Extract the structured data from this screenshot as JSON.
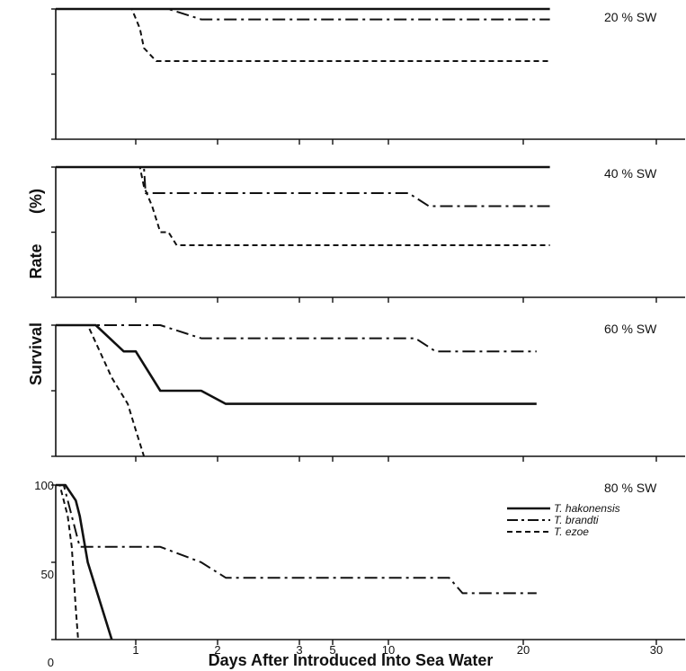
{
  "chart_data": {
    "type": "line",
    "xlabel": "Days After Introduced Into Sea Water",
    "ylabel_words": [
      "Survival",
      "Rate",
      "(%)"
    ],
    "x_ticks": [
      {
        "label": "1",
        "value": 1
      },
      {
        "label": "2",
        "value": 2
      },
      {
        "label": "3",
        "value": 3
      },
      {
        "label": "5",
        "value": 5
      },
      {
        "label": "10",
        "value": 10
      },
      {
        "label": "20",
        "value": 20
      },
      {
        "label": "30",
        "value": 30
      }
    ],
    "y_ticks": [
      "100",
      "50",
      "0"
    ],
    "ylim": [
      0,
      100
    ],
    "legend": [
      "T. hakonensis",
      "T. brandti",
      "T. ezoe"
    ],
    "panels": [
      {
        "label": "20 % SW",
        "series": [
          {
            "name": "T. hakonensis",
            "style": "solid",
            "points": [
              [
                0,
                100
              ],
              [
                22,
                100
              ]
            ]
          },
          {
            "name": "T. brandti",
            "style": "dashdot",
            "points": [
              [
                0,
                100
              ],
              [
                1.4,
                100
              ],
              [
                1.8,
                92
              ],
              [
                22,
                92
              ]
            ]
          },
          {
            "name": "T. ezoe",
            "style": "dashed",
            "points": [
              [
                0,
                100
              ],
              [
                0.95,
                100
              ],
              [
                1.05,
                85
              ],
              [
                1.1,
                70
              ],
              [
                1.25,
                60
              ],
              [
                22,
                60
              ]
            ]
          }
        ]
      },
      {
        "label": "40 % SW",
        "series": [
          {
            "name": "T. hakonensis",
            "style": "solid",
            "points": [
              [
                0,
                100
              ],
              [
                22,
                100
              ]
            ]
          },
          {
            "name": "T. brandti",
            "style": "dashdot",
            "points": [
              [
                0,
                100
              ],
              [
                1.1,
                100
              ],
              [
                1.12,
                80
              ],
              [
                11.5,
                80
              ],
              [
                13,
                70
              ],
              [
                22,
                70
              ]
            ]
          },
          {
            "name": "T. ezoe",
            "style": "dashed",
            "points": [
              [
                0,
                100
              ],
              [
                1.05,
                100
              ],
              [
                1.1,
                85
              ],
              [
                1.2,
                70
              ],
              [
                1.3,
                50
              ],
              [
                1.4,
                50
              ],
              [
                1.5,
                40
              ],
              [
                22,
                40
              ]
            ]
          }
        ]
      },
      {
        "label": "60 % SW",
        "series": [
          {
            "name": "T. hakonensis",
            "style": "solid",
            "points": [
              [
                0,
                100
              ],
              [
                0.5,
                100
              ],
              [
                0.85,
                80
              ],
              [
                1.0,
                80
              ],
              [
                1.3,
                50
              ],
              [
                1.8,
                50
              ],
              [
                2.1,
                40
              ],
              [
                21,
                40
              ]
            ]
          },
          {
            "name": "T. brandti",
            "style": "dashdot",
            "points": [
              [
                0,
                100
              ],
              [
                1.3,
                100
              ],
              [
                1.8,
                90
              ],
              [
                12,
                90
              ],
              [
                13.5,
                80
              ],
              [
                21,
                80
              ]
            ]
          },
          {
            "name": "T. ezoe",
            "style": "dashed",
            "points": [
              [
                0,
                100
              ],
              [
                0.4,
                100
              ],
              [
                0.55,
                80
              ],
              [
                0.7,
                60
              ],
              [
                0.9,
                40
              ],
              [
                1.0,
                20
              ],
              [
                1.1,
                0
              ]
            ]
          }
        ]
      },
      {
        "label": "80 % SW",
        "series": [
          {
            "name": "T. hakonensis",
            "style": "solid",
            "points": [
              [
                0,
                100
              ],
              [
                0.12,
                100
              ],
              [
                0.25,
                90
              ],
              [
                0.3,
                80
              ],
              [
                0.4,
                50
              ],
              [
                0.7,
                0
              ]
            ]
          },
          {
            "name": "T. brandti",
            "style": "dashdot",
            "points": [
              [
                0,
                100
              ],
              [
                0.1,
                100
              ],
              [
                0.3,
                60
              ],
              [
                1.3,
                60
              ],
              [
                1.8,
                50
              ],
              [
                2.1,
                40
              ],
              [
                14.5,
                40
              ],
              [
                15.5,
                30
              ],
              [
                21,
                30
              ]
            ]
          },
          {
            "name": "T. ezoe",
            "style": "dashed",
            "points": [
              [
                0,
                100
              ],
              [
                0.05,
                100
              ],
              [
                0.15,
                80
              ],
              [
                0.2,
                60
              ],
              [
                0.25,
                20
              ],
              [
                0.28,
                0
              ]
            ]
          }
        ]
      }
    ]
  }
}
